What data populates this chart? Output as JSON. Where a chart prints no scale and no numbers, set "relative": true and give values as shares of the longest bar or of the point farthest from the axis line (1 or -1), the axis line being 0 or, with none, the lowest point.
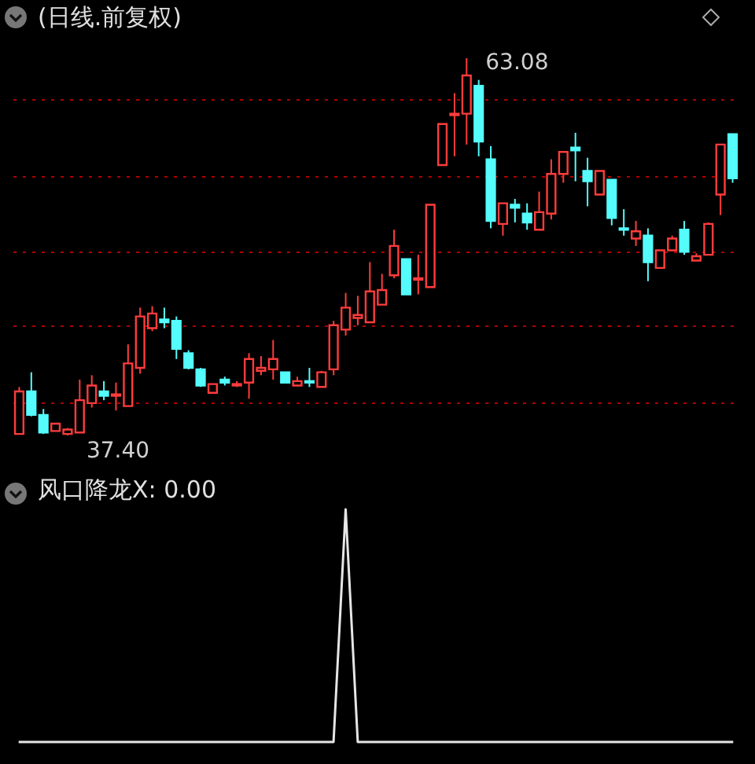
{
  "chart_data": [
    {
      "type": "candlestick",
      "title": "(日线.前复权)",
      "categories": [
        null,
        null,
        null,
        null,
        null,
        null,
        null,
        null,
        null,
        null,
        null,
        null,
        null,
        null,
        null,
        null,
        null,
        null,
        null,
        null,
        null,
        null,
        null,
        null,
        null,
        null,
        null,
        null,
        null,
        null,
        null,
        null,
        null,
        null,
        null,
        null,
        null,
        null,
        null,
        null,
        null,
        null,
        null,
        null,
        null,
        null,
        null,
        null,
        null,
        null,
        null,
        null,
        null,
        null,
        null,
        null,
        null,
        null,
        null,
        null
      ],
      "ohlc": [
        [
          37.5,
          40.7,
          37.5,
          40.4
        ],
        [
          40.4,
          41.7,
          38.7,
          38.8
        ],
        [
          38.8,
          39.2,
          37.5,
          37.6
        ],
        [
          37.7,
          38.2,
          37.7,
          38.2
        ],
        [
          37.5,
          37.9,
          37.4,
          37.8
        ],
        [
          37.6,
          41.2,
          37.6,
          39.8
        ],
        [
          39.6,
          41.5,
          39.3,
          40.8
        ],
        [
          40.4,
          41.1,
          39.8,
          40.1
        ],
        [
          40.1,
          41.0,
          39.1,
          40.2
        ],
        [
          39.4,
          43.6,
          39.4,
          42.3
        ],
        [
          42.0,
          46.1,
          41.6,
          45.5
        ],
        [
          44.7,
          46.2,
          44.5,
          45.7
        ],
        [
          45.3,
          46.1,
          44.7,
          45.1
        ],
        [
          45.2,
          45.5,
          42.6,
          43.3
        ],
        [
          43.0,
          43.2,
          41.9,
          42.0
        ],
        [
          41.9,
          42.0,
          40.7,
          40.8
        ],
        [
          40.3,
          40.9,
          40.3,
          40.9
        ],
        [
          41.2,
          41.4,
          40.8,
          41.0
        ],
        [
          40.8,
          41.1,
          40.7,
          40.9
        ],
        [
          41.0,
          43.0,
          39.9,
          42.6
        ],
        [
          41.8,
          42.8,
          41.5,
          42.0
        ],
        [
          41.9,
          43.9,
          41.2,
          42.6
        ],
        [
          41.7,
          41.7,
          41.0,
          41.0
        ],
        [
          40.8,
          41.4,
          40.8,
          41.1
        ],
        [
          41.1,
          42.0,
          40.7,
          41.0
        ],
        [
          40.7,
          41.8,
          40.7,
          41.7
        ],
        [
          41.9,
          45.2,
          41.5,
          44.9
        ],
        [
          44.6,
          47.1,
          44.2,
          46.1
        ],
        [
          45.4,
          46.9,
          44.9,
          45.6
        ],
        [
          45.1,
          49.2,
          45.1,
          47.2
        ],
        [
          46.3,
          48.4,
          46.3,
          47.3
        ],
        [
          48.3,
          51.4,
          48.1,
          50.3
        ],
        [
          49.4,
          49.4,
          47.0,
          47.0
        ],
        [
          48.0,
          49.7,
          47.0,
          48.1
        ],
        [
          47.5,
          53.1,
          47.5,
          53.1
        ],
        [
          55.8,
          58.6,
          55.8,
          58.6
        ],
        [
          59.2,
          60.7,
          56.4,
          59.3
        ],
        [
          59.3,
          63.08,
          57.2,
          61.9
        ],
        [
          61.2,
          61.6,
          56.4,
          57.4
        ],
        [
          56.2,
          57.1,
          51.5,
          52.0
        ],
        [
          51.8,
          53.2,
          51.0,
          53.2
        ],
        [
          53.1,
          53.5,
          51.9,
          52.9
        ],
        [
          52.5,
          53.2,
          51.4,
          51.9
        ],
        [
          51.4,
          54.0,
          51.4,
          52.6
        ],
        [
          52.5,
          56.2,
          52.1,
          55.2
        ],
        [
          55.2,
          56.7,
          54.6,
          56.7
        ],
        [
          57.0,
          58.0,
          54.7,
          56.8
        ],
        [
          55.4,
          56.3,
          53.0,
          54.7
        ],
        [
          53.8,
          55.4,
          53.8,
          55.4
        ],
        [
          54.8,
          54.8,
          51.7,
          52.2
        ],
        [
          51.5,
          52.8,
          51.0,
          51.4
        ],
        [
          50.8,
          52.0,
          50.3,
          51.3
        ],
        [
          51.0,
          51.5,
          47.9,
          49.2
        ],
        [
          48.8,
          50.0,
          48.8,
          50.0
        ],
        [
          50.0,
          51.0,
          50.0,
          50.8
        ],
        [
          51.4,
          52.0,
          49.7,
          49.9
        ],
        [
          49.3,
          49.8,
          49.3,
          49.6
        ],
        [
          49.7,
          51.9,
          49.7,
          51.8
        ],
        [
          53.8,
          57.2,
          52.4,
          57.2
        ],
        [
          57.9,
          57.9,
          54.6,
          54.9
        ]
      ],
      "yticks": [
        {
          "value": 39.6,
          "label": null
        },
        {
          "value": 44.9,
          "label": null
        },
        {
          "value": 49.9,
          "label": null
        },
        {
          "value": 55.1,
          "label": null
        },
        {
          "value": 60.3,
          "label": null
        }
      ],
      "grid": "y",
      "tick_labels": false,
      "annotations": [
        "63.08",
        "37.40"
      ]
    },
    {
      "type": "line",
      "title": "风口降龙X: 0.00",
      "relative": true,
      "categories": [
        null,
        null,
        null,
        null,
        null,
        null,
        null,
        null,
        null,
        null,
        null,
        null,
        null,
        null,
        null,
        null,
        null,
        null,
        null,
        null,
        null,
        null,
        null,
        null,
        null,
        null,
        null,
        null,
        null,
        null,
        null,
        null,
        null,
        null,
        null,
        null,
        null,
        null,
        null,
        null,
        null,
        null,
        null,
        null,
        null,
        null,
        null,
        null,
        null,
        null,
        null,
        null,
        null,
        null,
        null,
        null,
        null,
        null,
        null,
        null
      ],
      "series": [
        {
          "color": "#e6e6e6",
          "values": [
            0,
            0,
            0,
            0,
            0,
            0,
            0,
            0,
            0,
            0,
            0,
            0,
            0,
            0,
            0,
            0,
            0,
            0,
            0,
            0,
            0,
            0,
            0,
            0,
            0,
            0,
            0,
            1,
            0,
            0,
            0,
            0,
            0,
            0,
            0,
            0,
            0,
            0,
            0,
            0,
            0,
            0,
            0,
            0,
            0,
            0,
            0,
            0,
            0,
            0,
            0,
            0,
            0,
            0,
            0,
            0,
            0,
            0,
            0,
            0
          ]
        }
      ]
    }
  ]
}
